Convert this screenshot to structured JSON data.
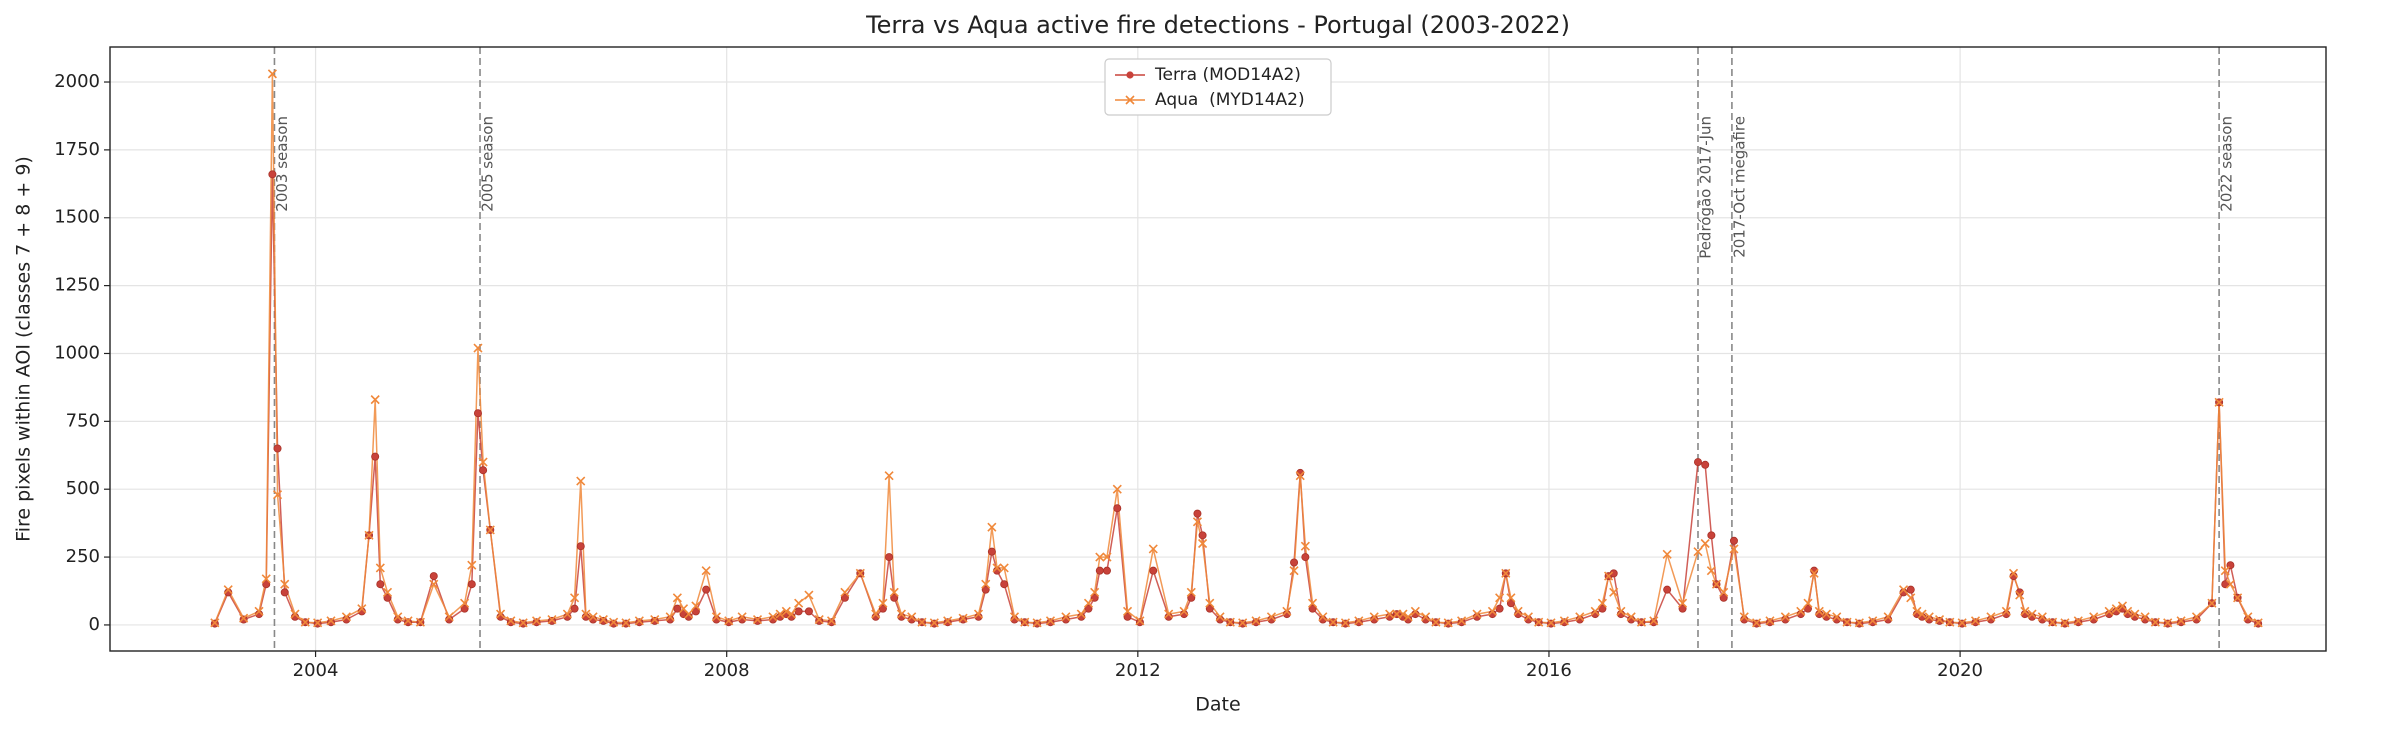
{
  "chart_data": {
    "type": "line",
    "title": "Terra vs Aqua active fire detections - Portugal (2003-2022)",
    "x_label": "Date",
    "y_label": "Fire pixels within AOI (classes 7 + 8 + 9)",
    "xlim": [
      2002.0,
      2023.56
    ],
    "ylim": [
      -96,
      2129
    ],
    "xticks": [
      2004,
      2008,
      2012,
      2016,
      2020
    ],
    "yticks": [
      0,
      250,
      500,
      750,
      1000,
      1250,
      1500,
      1750,
      2000
    ],
    "grid": true,
    "legend": "upper center",
    "x": [
      2003.02,
      2003.15,
      2003.3,
      2003.45,
      2003.52,
      2003.58,
      2003.63,
      2003.7,
      2003.8,
      2003.9,
      2004.02,
      2004.15,
      2004.3,
      2004.45,
      2004.52,
      2004.58,
      2004.63,
      2004.7,
      2004.8,
      2004.9,
      2005.02,
      2005.15,
      2005.3,
      2005.45,
      2005.52,
      2005.58,
      2005.63,
      2005.7,
      2005.8,
      2005.9,
      2006.02,
      2006.15,
      2006.3,
      2006.45,
      2006.52,
      2006.58,
      2006.63,
      2006.7,
      2006.8,
      2006.9,
      2007.02,
      2007.15,
      2007.3,
      2007.45,
      2007.52,
      2007.58,
      2007.63,
      2007.7,
      2007.8,
      2007.9,
      2008.02,
      2008.15,
      2008.3,
      2008.45,
      2008.52,
      2008.58,
      2008.63,
      2008.7,
      2008.8,
      2008.9,
      2009.02,
      2009.15,
      2009.3,
      2009.45,
      2009.52,
      2009.58,
      2009.63,
      2009.7,
      2009.8,
      2009.9,
      2010.02,
      2010.15,
      2010.3,
      2010.45,
      2010.52,
      2010.58,
      2010.63,
      2010.7,
      2010.8,
      2010.9,
      2011.02,
      2011.15,
      2011.3,
      2011.45,
      2011.52,
      2011.58,
      2011.63,
      2011.7,
      2011.8,
      2011.9,
      2012.02,
      2012.15,
      2012.3,
      2012.45,
      2012.52,
      2012.58,
      2012.63,
      2012.7,
      2012.8,
      2012.9,
      2013.02,
      2013.15,
      2013.3,
      2013.45,
      2013.52,
      2013.58,
      2013.63,
      2013.7,
      2013.8,
      2013.9,
      2014.02,
      2014.15,
      2014.3,
      2014.45,
      2014.52,
      2014.58,
      2014.63,
      2014.7,
      2014.8,
      2014.9,
      2015.02,
      2015.15,
      2015.3,
      2015.45,
      2015.52,
      2015.58,
      2015.63,
      2015.7,
      2015.8,
      2015.9,
      2016.02,
      2016.15,
      2016.3,
      2016.45,
      2016.52,
      2016.58,
      2016.63,
      2016.7,
      2016.8,
      2016.9,
      2017.02,
      2017.15,
      2017.3,
      2017.45,
      2017.52,
      2017.58,
      2017.63,
      2017.7,
      2017.8,
      2017.9,
      2018.02,
      2018.15,
      2018.3,
      2018.45,
      2018.52,
      2018.58,
      2018.63,
      2018.7,
      2018.8,
      2018.9,
      2019.02,
      2019.15,
      2019.3,
      2019.45,
      2019.52,
      2019.58,
      2019.63,
      2019.7,
      2019.8,
      2019.9,
      2020.02,
      2020.15,
      2020.3,
      2020.45,
      2020.52,
      2020.58,
      2020.63,
      2020.7,
      2020.8,
      2020.9,
      2021.02,
      2021.15,
      2021.3,
      2021.45,
      2021.52,
      2021.58,
      2021.63,
      2021.7,
      2021.8,
      2021.9,
      2022.02,
      2022.15,
      2022.3,
      2022.45,
      2022.52,
      2022.58,
      2022.63,
      2022.7,
      2022.8,
      2022.9
    ],
    "series": [
      {
        "name": "Terra (MOD14A2)",
        "color": "#c8423a",
        "marker": "circle",
        "values": [
          5,
          120,
          20,
          40,
          150,
          1660,
          650,
          120,
          30,
          10,
          5,
          10,
          20,
          50,
          330,
          620,
          150,
          100,
          20,
          10,
          10,
          180,
          20,
          60,
          150,
          780,
          570,
          350,
          30,
          10,
          5,
          10,
          15,
          30,
          60,
          290,
          30,
          20,
          15,
          5,
          5,
          10,
          15,
          20,
          60,
          40,
          30,
          50,
          130,
          20,
          10,
          20,
          15,
          20,
          30,
          40,
          30,
          50,
          50,
          15,
          10,
          100,
          190,
          30,
          60,
          250,
          100,
          30,
          20,
          10,
          5,
          10,
          20,
          30,
          130,
          270,
          200,
          150,
          20,
          10,
          5,
          10,
          20,
          30,
          60,
          100,
          200,
          200,
          430,
          30,
          10,
          200,
          30,
          40,
          100,
          410,
          330,
          60,
          20,
          10,
          5,
          10,
          20,
          40,
          230,
          560,
          250,
          60,
          20,
          10,
          5,
          10,
          20,
          30,
          40,
          30,
          20,
          40,
          20,
          10,
          5,
          10,
          30,
          40,
          60,
          190,
          80,
          40,
          20,
          10,
          5,
          10,
          20,
          40,
          60,
          180,
          190,
          40,
          20,
          10,
          10,
          130,
          60,
          600,
          590,
          330,
          150,
          100,
          310,
          20,
          5,
          10,
          20,
          40,
          60,
          200,
          40,
          30,
          20,
          10,
          5,
          10,
          20,
          120,
          130,
          40,
          30,
          20,
          15,
          10,
          5,
          10,
          20,
          40,
          180,
          120,
          40,
          30,
          20,
          10,
          5,
          10,
          20,
          40,
          50,
          60,
          40,
          30,
          20,
          10,
          5,
          10,
          20,
          80,
          820,
          150,
          220,
          100,
          20,
          5
        ]
      },
      {
        "name": "Aqua  (MYD14A2)",
        "color": "#f0883a",
        "marker": "x",
        "values": [
          8,
          130,
          25,
          50,
          170,
          2030,
          480,
          150,
          40,
          10,
          8,
          15,
          30,
          60,
          330,
          830,
          210,
          120,
          30,
          15,
          10,
          150,
          30,
          80,
          220,
          1020,
          600,
          350,
          40,
          15,
          8,
          15,
          20,
          40,
          100,
          530,
          40,
          30,
          20,
          10,
          8,
          15,
          20,
          30,
          100,
          60,
          40,
          70,
          200,
          30,
          15,
          30,
          20,
          30,
          40,
          50,
          40,
          80,
          110,
          20,
          15,
          120,
          190,
          40,
          80,
          550,
          120,
          40,
          30,
          10,
          8,
          15,
          25,
          40,
          150,
          360,
          210,
          210,
          30,
          10,
          8,
          15,
          30,
          40,
          80,
          120,
          250,
          250,
          500,
          50,
          15,
          280,
          40,
          50,
          120,
          380,
          300,
          80,
          30,
          10,
          8,
          15,
          30,
          50,
          200,
          550,
          290,
          80,
          30,
          10,
          8,
          15,
          30,
          40,
          40,
          40,
          30,
          50,
          30,
          10,
          8,
          15,
          40,
          50,
          100,
          190,
          100,
          50,
          30,
          10,
          8,
          15,
          30,
          50,
          80,
          180,
          120,
          50,
          30,
          10,
          15,
          260,
          80,
          270,
          300,
          200,
          150,
          120,
          280,
          30,
          8,
          15,
          30,
          50,
          80,
          190,
          50,
          40,
          30,
          10,
          8,
          15,
          30,
          130,
          100,
          50,
          40,
          30,
          20,
          10,
          8,
          15,
          30,
          50,
          190,
          110,
          50,
          40,
          30,
          10,
          8,
          15,
          30,
          50,
          60,
          70,
          50,
          40,
          30,
          10,
          8,
          15,
          30,
          80,
          820,
          200,
          150,
          100,
          30,
          8
        ]
      }
    ],
    "annotations": [
      {
        "x": 2003.6,
        "label": "2003 season"
      },
      {
        "x": 2005.6,
        "label": "2005 season"
      },
      {
        "x": 2017.45,
        "label": "Pedrógão 2017-Jun"
      },
      {
        "x": 2017.78,
        "label": "2017-Oct megafire"
      },
      {
        "x": 2022.52,
        "label": "2022 season"
      }
    ]
  }
}
